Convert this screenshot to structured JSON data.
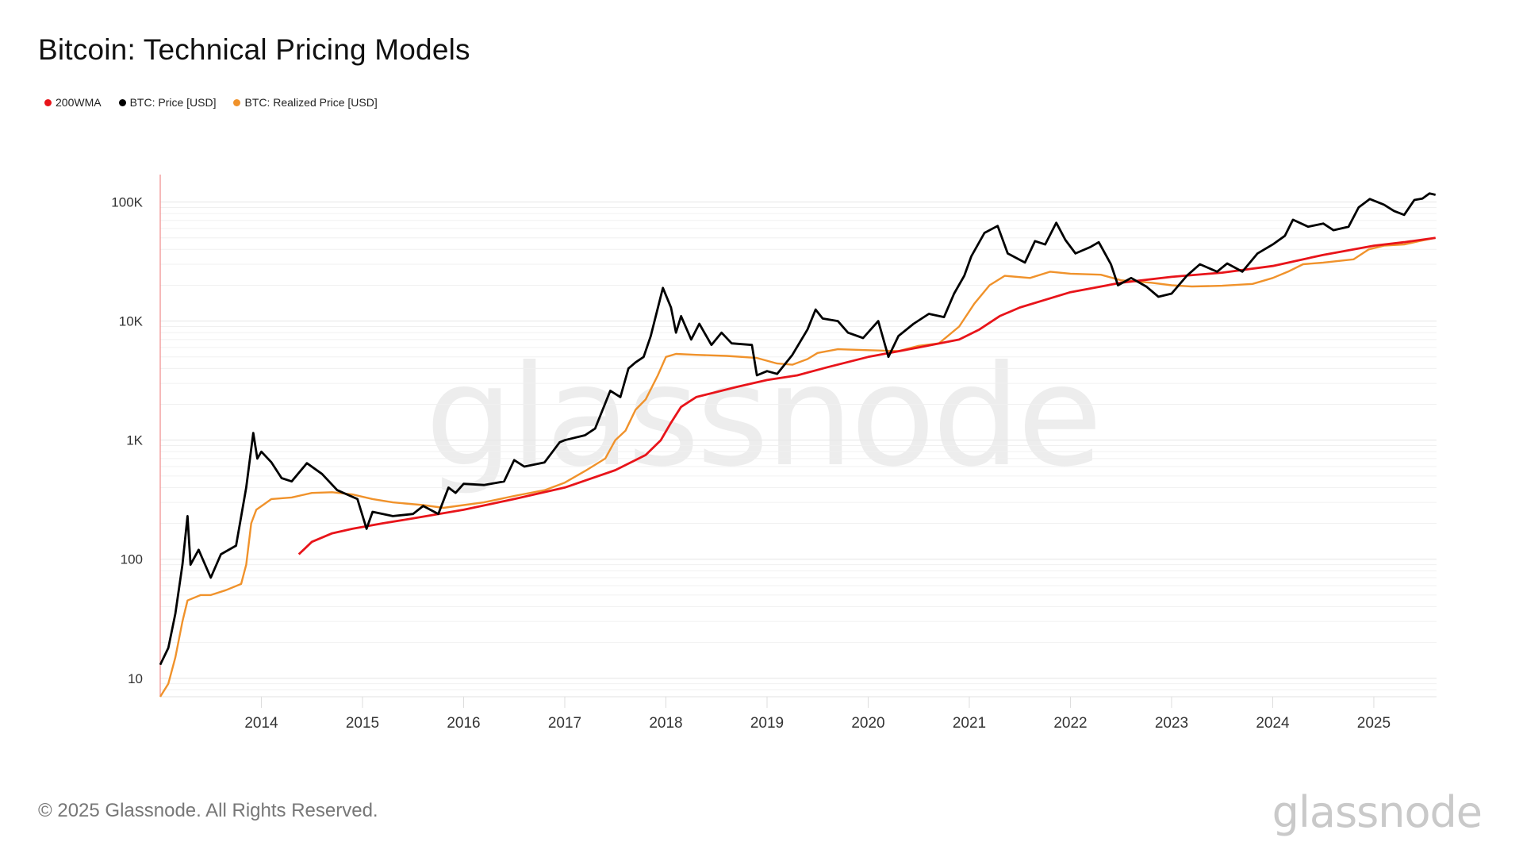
{
  "title": "Bitcoin: Technical Pricing Models",
  "footer": "© 2025 Glassnode. All Rights Reserved.",
  "logo_text": "glassnode",
  "watermark": "glassnode",
  "legend": [
    {
      "label": "200WMA",
      "color": "#e8141a"
    },
    {
      "label": "BTC: Price [USD]",
      "color": "#000000"
    },
    {
      "label": "BTC: Realized Price [USD]",
      "color": "#f0922b"
    }
  ],
  "chart_data": {
    "type": "line",
    "title": "Bitcoin: Technical Pricing Models",
    "y_scale": "log",
    "ylim": [
      7,
      170000
    ],
    "xlim": [
      2013.0,
      2025.62
    ],
    "grid": true,
    "legend_position": "top-left",
    "y_ticks": [
      {
        "value": 100000,
        "label": "100K"
      },
      {
        "value": 10000,
        "label": "10K"
      },
      {
        "value": 1000,
        "label": "1K"
      },
      {
        "value": 100,
        "label": "100"
      },
      {
        "value": 10,
        "label": "10"
      }
    ],
    "x_ticks": [
      "2014",
      "2015",
      "2016",
      "2017",
      "2018",
      "2019",
      "2020",
      "2021",
      "2022",
      "2023",
      "2024",
      "2025"
    ],
    "series": [
      {
        "name": "BTC: Price [USD]",
        "color": "#000000",
        "points": [
          [
            2013.0,
            13
          ],
          [
            2013.08,
            18
          ],
          [
            2013.15,
            35
          ],
          [
            2013.22,
            90
          ],
          [
            2013.27,
            230
          ],
          [
            2013.3,
            90
          ],
          [
            2013.38,
            120
          ],
          [
            2013.5,
            70
          ],
          [
            2013.6,
            110
          ],
          [
            2013.75,
            130
          ],
          [
            2013.85,
            400
          ],
          [
            2013.92,
            1150
          ],
          [
            2013.96,
            700
          ],
          [
            2014.0,
            800
          ],
          [
            2014.1,
            650
          ],
          [
            2014.2,
            480
          ],
          [
            2014.3,
            450
          ],
          [
            2014.45,
            640
          ],
          [
            2014.6,
            520
          ],
          [
            2014.75,
            380
          ],
          [
            2014.95,
            320
          ],
          [
            2015.04,
            180
          ],
          [
            2015.1,
            250
          ],
          [
            2015.3,
            230
          ],
          [
            2015.5,
            240
          ],
          [
            2015.6,
            280
          ],
          [
            2015.75,
            240
          ],
          [
            2015.85,
            400
          ],
          [
            2015.92,
            360
          ],
          [
            2016.0,
            430
          ],
          [
            2016.2,
            420
          ],
          [
            2016.4,
            450
          ],
          [
            2016.5,
            680
          ],
          [
            2016.6,
            600
          ],
          [
            2016.8,
            650
          ],
          [
            2016.95,
            960
          ],
          [
            2017.0,
            1000
          ],
          [
            2017.2,
            1100
          ],
          [
            2017.3,
            1250
          ],
          [
            2017.45,
            2600
          ],
          [
            2017.55,
            2300
          ],
          [
            2017.63,
            4000
          ],
          [
            2017.7,
            4500
          ],
          [
            2017.78,
            5000
          ],
          [
            2017.85,
            7500
          ],
          [
            2017.97,
            19000
          ],
          [
            2018.05,
            13000
          ],
          [
            2018.1,
            8000
          ],
          [
            2018.15,
            11000
          ],
          [
            2018.25,
            7000
          ],
          [
            2018.33,
            9500
          ],
          [
            2018.45,
            6300
          ],
          [
            2018.55,
            8000
          ],
          [
            2018.65,
            6500
          ],
          [
            2018.85,
            6300
          ],
          [
            2018.9,
            3500
          ],
          [
            2019.0,
            3800
          ],
          [
            2019.1,
            3600
          ],
          [
            2019.25,
            5200
          ],
          [
            2019.4,
            8500
          ],
          [
            2019.48,
            12500
          ],
          [
            2019.55,
            10500
          ],
          [
            2019.7,
            10000
          ],
          [
            2019.8,
            8000
          ],
          [
            2019.95,
            7200
          ],
          [
            2020.1,
            10000
          ],
          [
            2020.2,
            5000
          ],
          [
            2020.3,
            7500
          ],
          [
            2020.45,
            9500
          ],
          [
            2020.6,
            11500
          ],
          [
            2020.75,
            10800
          ],
          [
            2020.85,
            17000
          ],
          [
            2020.95,
            24000
          ],
          [
            2021.02,
            35000
          ],
          [
            2021.15,
            55000
          ],
          [
            2021.28,
            63000
          ],
          [
            2021.38,
            37000
          ],
          [
            2021.55,
            31000
          ],
          [
            2021.65,
            47000
          ],
          [
            2021.75,
            44000
          ],
          [
            2021.86,
            67000
          ],
          [
            2021.95,
            48000
          ],
          [
            2022.05,
            37000
          ],
          [
            2022.2,
            42000
          ],
          [
            2022.28,
            46000
          ],
          [
            2022.4,
            30000
          ],
          [
            2022.47,
            20000
          ],
          [
            2022.6,
            23000
          ],
          [
            2022.75,
            19500
          ],
          [
            2022.87,
            16000
          ],
          [
            2023.0,
            17000
          ],
          [
            2023.15,
            24000
          ],
          [
            2023.28,
            30000
          ],
          [
            2023.45,
            26000
          ],
          [
            2023.55,
            30500
          ],
          [
            2023.7,
            26000
          ],
          [
            2023.85,
            37000
          ],
          [
            2024.0,
            44000
          ],
          [
            2024.12,
            52000
          ],
          [
            2024.2,
            71000
          ],
          [
            2024.35,
            62000
          ],
          [
            2024.5,
            66000
          ],
          [
            2024.6,
            58000
          ],
          [
            2024.75,
            62000
          ],
          [
            2024.85,
            90000
          ],
          [
            2024.96,
            106000
          ],
          [
            2025.1,
            95000
          ],
          [
            2025.2,
            84000
          ],
          [
            2025.3,
            78000
          ],
          [
            2025.4,
            104000
          ],
          [
            2025.48,
            107000
          ],
          [
            2025.55,
            118000
          ],
          [
            2025.61,
            115000
          ]
        ]
      },
      {
        "name": "BTC: Realized Price [USD]",
        "color": "#f0922b",
        "points": [
          [
            2013.0,
            7
          ],
          [
            2013.08,
            9
          ],
          [
            2013.15,
            15
          ],
          [
            2013.22,
            30
          ],
          [
            2013.27,
            45
          ],
          [
            2013.4,
            50
          ],
          [
            2013.5,
            50
          ],
          [
            2013.65,
            55
          ],
          [
            2013.8,
            62
          ],
          [
            2013.85,
            90
          ],
          [
            2013.9,
            200
          ],
          [
            2013.95,
            260
          ],
          [
            2014.1,
            320
          ],
          [
            2014.3,
            330
          ],
          [
            2014.5,
            360
          ],
          [
            2014.7,
            365
          ],
          [
            2014.9,
            350
          ],
          [
            2015.1,
            320
          ],
          [
            2015.3,
            300
          ],
          [
            2015.6,
            285
          ],
          [
            2015.8,
            270
          ],
          [
            2016.0,
            285
          ],
          [
            2016.2,
            300
          ],
          [
            2016.5,
            340
          ],
          [
            2016.8,
            380
          ],
          [
            2017.0,
            440
          ],
          [
            2017.2,
            550
          ],
          [
            2017.4,
            700
          ],
          [
            2017.5,
            1000
          ],
          [
            2017.6,
            1200
          ],
          [
            2017.7,
            1800
          ],
          [
            2017.8,
            2200
          ],
          [
            2017.92,
            3500
          ],
          [
            2018.0,
            5000
          ],
          [
            2018.1,
            5300
          ],
          [
            2018.3,
            5200
          ],
          [
            2018.6,
            5100
          ],
          [
            2018.9,
            4900
          ],
          [
            2019.1,
            4400
          ],
          [
            2019.25,
            4300
          ],
          [
            2019.4,
            4800
          ],
          [
            2019.5,
            5400
          ],
          [
            2019.7,
            5800
          ],
          [
            2020.0,
            5700
          ],
          [
            2020.3,
            5600
          ],
          [
            2020.5,
            6200
          ],
          [
            2020.7,
            6500
          ],
          [
            2020.9,
            9000
          ],
          [
            2021.05,
            14000
          ],
          [
            2021.2,
            20000
          ],
          [
            2021.35,
            24000
          ],
          [
            2021.6,
            23000
          ],
          [
            2021.8,
            26000
          ],
          [
            2022.0,
            25000
          ],
          [
            2022.3,
            24500
          ],
          [
            2022.5,
            22000
          ],
          [
            2022.8,
            21000
          ],
          [
            2023.0,
            20000
          ],
          [
            2023.2,
            19500
          ],
          [
            2023.5,
            19800
          ],
          [
            2023.8,
            20500
          ],
          [
            2024.0,
            23000
          ],
          [
            2024.15,
            26000
          ],
          [
            2024.3,
            30000
          ],
          [
            2024.5,
            31000
          ],
          [
            2024.8,
            33000
          ],
          [
            2024.95,
            40000
          ],
          [
            2025.1,
            43000
          ],
          [
            2025.3,
            44000
          ],
          [
            2025.45,
            47000
          ],
          [
            2025.61,
            50000
          ]
        ]
      },
      {
        "name": "200WMA",
        "color": "#e8141a",
        "points": [
          [
            2014.37,
            110
          ],
          [
            2014.5,
            140
          ],
          [
            2014.7,
            165
          ],
          [
            2014.9,
            180
          ],
          [
            2015.2,
            200
          ],
          [
            2015.5,
            220
          ],
          [
            2016.0,
            260
          ],
          [
            2016.5,
            320
          ],
          [
            2017.0,
            400
          ],
          [
            2017.5,
            560
          ],
          [
            2017.8,
            750
          ],
          [
            2017.95,
            1000
          ],
          [
            2018.05,
            1400
          ],
          [
            2018.15,
            1900
          ],
          [
            2018.3,
            2300
          ],
          [
            2018.7,
            2800
          ],
          [
            2019.0,
            3200
          ],
          [
            2019.3,
            3500
          ],
          [
            2019.6,
            4100
          ],
          [
            2020.0,
            5000
          ],
          [
            2020.5,
            6000
          ],
          [
            2020.9,
            7000
          ],
          [
            2021.1,
            8500
          ],
          [
            2021.3,
            11000
          ],
          [
            2021.5,
            13000
          ],
          [
            2022.0,
            17500
          ],
          [
            2022.5,
            21000
          ],
          [
            2023.0,
            23500
          ],
          [
            2023.5,
            25500
          ],
          [
            2024.0,
            29000
          ],
          [
            2024.5,
            36000
          ],
          [
            2025.0,
            43000
          ],
          [
            2025.3,
            46000
          ],
          [
            2025.61,
            50000
          ]
        ]
      }
    ]
  }
}
